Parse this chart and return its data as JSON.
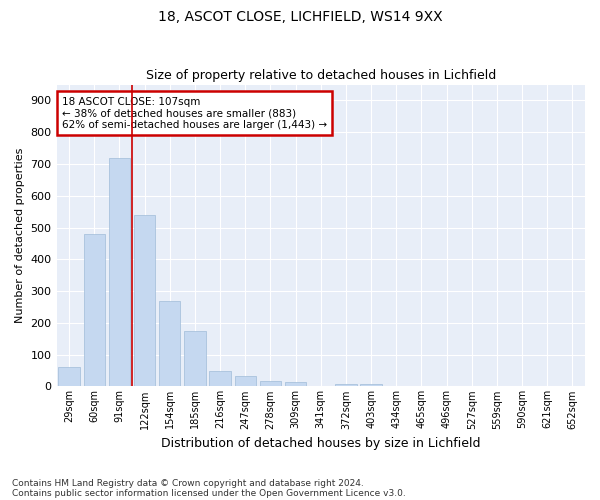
{
  "title1": "18, ASCOT CLOSE, LICHFIELD, WS14 9XX",
  "title2": "Size of property relative to detached houses in Lichfield",
  "xlabel": "Distribution of detached houses by size in Lichfield",
  "ylabel": "Number of detached properties",
  "categories": [
    "29sqm",
    "60sqm",
    "91sqm",
    "122sqm",
    "154sqm",
    "185sqm",
    "216sqm",
    "247sqm",
    "278sqm",
    "309sqm",
    "341sqm",
    "372sqm",
    "403sqm",
    "434sqm",
    "465sqm",
    "496sqm",
    "527sqm",
    "559sqm",
    "590sqm",
    "621sqm",
    "652sqm"
  ],
  "values": [
    60,
    480,
    720,
    540,
    270,
    175,
    47,
    33,
    18,
    14,
    0,
    8,
    8,
    0,
    0,
    0,
    0,
    0,
    0,
    0,
    0
  ],
  "bar_color": "#c5d8f0",
  "bar_edge_color": "#a0bcd8",
  "vline_x": 2.5,
  "vline_color": "#cc0000",
  "annotation_text": "18 ASCOT CLOSE: 107sqm\n← 38% of detached houses are smaller (883)\n62% of semi-detached houses are larger (1,443) →",
  "annotation_box_color": "#ffffff",
  "annotation_box_edge_color": "#cc0000",
  "ylim": [
    0,
    950
  ],
  "yticks": [
    0,
    100,
    200,
    300,
    400,
    500,
    600,
    700,
    800,
    900
  ],
  "fig_bg": "#ffffff",
  "background_color": "#e8eef8",
  "grid_color": "#ffffff",
  "footer1": "Contains HM Land Registry data © Crown copyright and database right 2024.",
  "footer2": "Contains public sector information licensed under the Open Government Licence v3.0."
}
